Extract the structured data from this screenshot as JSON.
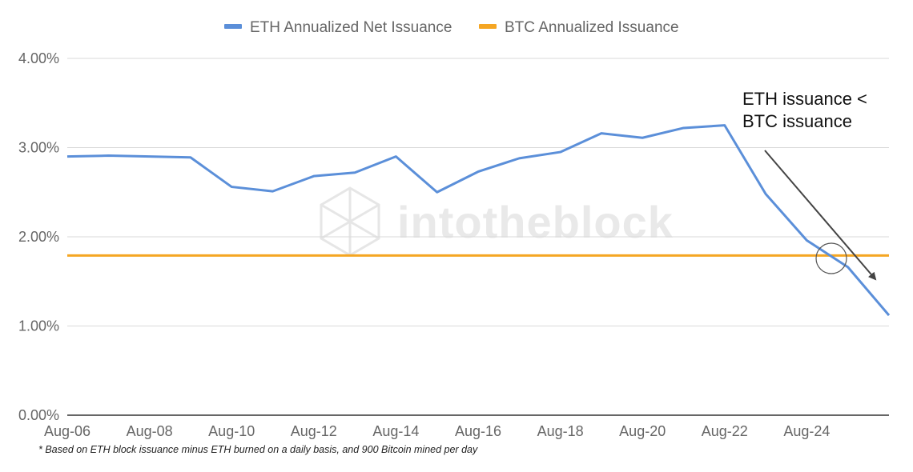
{
  "chart_data": {
    "type": "line",
    "categories": [
      "Aug-06",
      "Aug-07",
      "Aug-08",
      "Aug-09",
      "Aug-10",
      "Aug-11",
      "Aug-12",
      "Aug-13",
      "Aug-14",
      "Aug-15",
      "Aug-16",
      "Aug-17",
      "Aug-18",
      "Aug-19",
      "Aug-20",
      "Aug-21",
      "Aug-22",
      "Aug-23",
      "Aug-24",
      "Aug-25",
      "Aug-26"
    ],
    "x_tick_labels": [
      "Aug-06",
      "Aug-08",
      "Aug-10",
      "Aug-12",
      "Aug-14",
      "Aug-16",
      "Aug-18",
      "Aug-20",
      "Aug-22",
      "Aug-24"
    ],
    "series": [
      {
        "name": "ETH Annualized Net Issuance",
        "color": "#5b8fd9",
        "values": [
          2.9,
          2.91,
          2.9,
          2.89,
          2.56,
          2.51,
          2.68,
          2.72,
          2.9,
          2.5,
          2.73,
          2.88,
          2.95,
          3.16,
          3.11,
          3.22,
          3.25,
          2.48,
          1.96,
          1.66,
          1.12
        ]
      },
      {
        "name": "BTC Annualized Issuance",
        "color": "#f5a623",
        "values": [
          1.79,
          1.79,
          1.79,
          1.79,
          1.79,
          1.79,
          1.79,
          1.79,
          1.79,
          1.79,
          1.79,
          1.79,
          1.79,
          1.79,
          1.79,
          1.79,
          1.79,
          1.79,
          1.79,
          1.79,
          1.79
        ]
      }
    ],
    "y_tick_labels": [
      "0.00%",
      "1.00%",
      "2.00%",
      "3.00%",
      "4.00%"
    ],
    "ylim": [
      0,
      4
    ],
    "y_unit": "%",
    "grid": true,
    "legend_position": "top-center",
    "annotation": {
      "lines": [
        "ETH issuance <",
        "BTC issuance"
      ],
      "arrow_color": "#444444"
    }
  },
  "watermark": "intotheblock",
  "footnote": "* Based on ETH block issuance minus ETH burned on a daily basis, and 900 Bitcoin mined per day"
}
